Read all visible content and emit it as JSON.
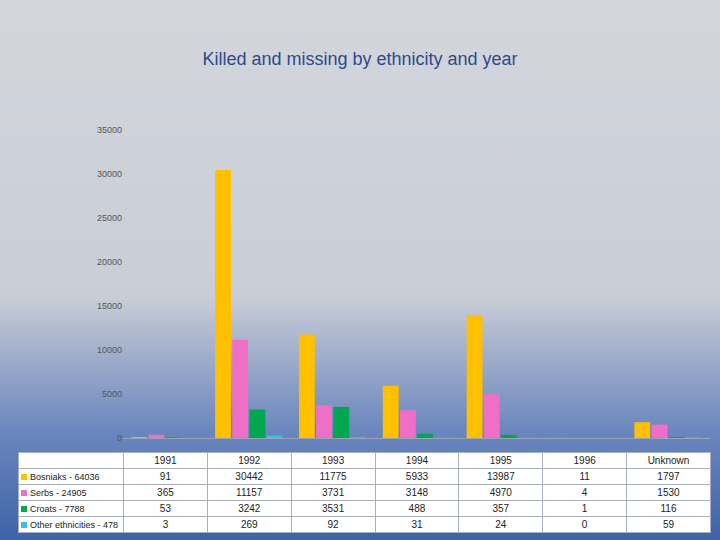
{
  "chart_data": {
    "type": "bar",
    "title": "Killed and missing by ethnicity and year",
    "categories": [
      "1991",
      "1992",
      "1993",
      "1994",
      "1995",
      "1996",
      "Unknown"
    ],
    "series": [
      {
        "name": "Bosniaks - 64036",
        "color": "#ffc000",
        "values": [
          91,
          30442,
          11775,
          5933,
          13987,
          11,
          1797
        ]
      },
      {
        "name": "Serbs - 24905",
        "color": "#f06fc6",
        "values": [
          365,
          11157,
          3731,
          3148,
          4970,
          4,
          1530
        ]
      },
      {
        "name": "Croats - 7788",
        "color": "#00a650",
        "values": [
          53,
          3242,
          3531,
          488,
          357,
          1,
          116
        ]
      },
      {
        "name": "Other ethnicities - 478",
        "color": "#33c3f0",
        "values": [
          3,
          269,
          92,
          31,
          24,
          0,
          59
        ]
      }
    ],
    "ylim": [
      0,
      35000
    ],
    "yticks": [
      0,
      5000,
      10000,
      15000,
      20000,
      25000,
      30000,
      35000
    ],
    "grid": false,
    "tick_labels": "y"
  }
}
